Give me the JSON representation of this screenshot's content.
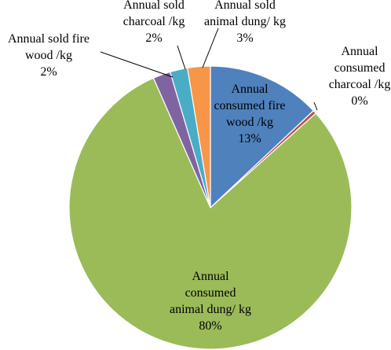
{
  "chart_data": {
    "type": "pie",
    "slices": [
      {
        "label_lines": [
          "Annual",
          "consumed fire",
          "wood /kg",
          "13%"
        ],
        "value": 13,
        "color": "#4f81bd"
      },
      {
        "label_lines": [
          "Annual",
          "consumed",
          "charcoal /kg",
          "0%"
        ],
        "value": 0.4,
        "color": "#c0504d"
      },
      {
        "label_lines": [
          "Annual",
          "consumed",
          "animal dung/ kg",
          "80%"
        ],
        "value": 80,
        "color": "#9bbb59"
      },
      {
        "label_lines": [
          "Annual sold fire",
          "wood  /kg",
          "2%"
        ],
        "value": 2,
        "color": "#8064a2"
      },
      {
        "label_lines": [
          "Annual sold",
          "charcoal /kg",
          "2%"
        ],
        "value": 2,
        "color": "#4bacc6"
      },
      {
        "label_lines": [
          "Annual sold",
          "animal dung/ kg",
          "3%"
        ],
        "value": 2.6,
        "color": "#f79646"
      }
    ],
    "start_angle_deg": 0,
    "direction": "clockwise"
  }
}
